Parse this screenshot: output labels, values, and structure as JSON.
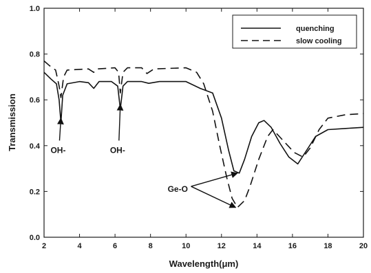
{
  "chart_data": {
    "type": "line",
    "xlabel": "Wavelength(μm)",
    "ylabel": "Transmission",
    "xlim": [
      2,
      20
    ],
    "ylim": [
      0.0,
      1.0
    ],
    "xticks": [
      2,
      4,
      6,
      8,
      10,
      12,
      14,
      16,
      18,
      20
    ],
    "yticks": [
      0.0,
      0.2,
      0.4,
      0.6,
      0.8,
      1.0
    ],
    "xtick_labels": [
      "2",
      "4",
      "6",
      "8",
      "10",
      "12",
      "14",
      "16",
      "18",
      "20"
    ],
    "ytick_labels": [
      "0.0",
      "0.2",
      "0.4",
      "0.6",
      "0.8",
      "1.0"
    ],
    "grid": false,
    "legend_position": "top-right",
    "series": [
      {
        "name": "quenching",
        "style": "solid",
        "color": "#111111",
        "points": [
          [
            2.0,
            0.72
          ],
          [
            2.4,
            0.69
          ],
          [
            2.7,
            0.67
          ],
          [
            2.85,
            0.6
          ],
          [
            2.95,
            0.5
          ],
          [
            3.05,
            0.62
          ],
          [
            3.3,
            0.67
          ],
          [
            4.0,
            0.68
          ],
          [
            4.5,
            0.675
          ],
          [
            4.8,
            0.65
          ],
          [
            5.1,
            0.68
          ],
          [
            5.8,
            0.68
          ],
          [
            6.15,
            0.66
          ],
          [
            6.3,
            0.56
          ],
          [
            6.45,
            0.66
          ],
          [
            6.7,
            0.68
          ],
          [
            7.5,
            0.68
          ],
          [
            7.9,
            0.672
          ],
          [
            8.5,
            0.68
          ],
          [
            10.0,
            0.68
          ],
          [
            10.8,
            0.65
          ],
          [
            11.5,
            0.63
          ],
          [
            12.0,
            0.52
          ],
          [
            12.4,
            0.38
          ],
          [
            12.7,
            0.29
          ],
          [
            13.0,
            0.28
          ],
          [
            13.3,
            0.34
          ],
          [
            13.7,
            0.44
          ],
          [
            14.1,
            0.5
          ],
          [
            14.4,
            0.51
          ],
          [
            14.8,
            0.48
          ],
          [
            15.3,
            0.41
          ],
          [
            15.8,
            0.35
          ],
          [
            16.3,
            0.32
          ],
          [
            16.8,
            0.38
          ],
          [
            17.3,
            0.44
          ],
          [
            18.0,
            0.47
          ],
          [
            19.0,
            0.475
          ],
          [
            20.0,
            0.48
          ]
        ]
      },
      {
        "name": "slow cooling",
        "style": "dashed",
        "color": "#111111",
        "points": [
          [
            2.0,
            0.77
          ],
          [
            2.3,
            0.75
          ],
          [
            2.65,
            0.73
          ],
          [
            2.85,
            0.66
          ],
          [
            2.95,
            0.61
          ],
          [
            3.1,
            0.7
          ],
          [
            3.3,
            0.73
          ],
          [
            4.5,
            0.735
          ],
          [
            4.8,
            0.72
          ],
          [
            5.0,
            0.735
          ],
          [
            6.0,
            0.74
          ],
          [
            6.2,
            0.72
          ],
          [
            6.3,
            0.63
          ],
          [
            6.45,
            0.72
          ],
          [
            6.7,
            0.74
          ],
          [
            7.5,
            0.74
          ],
          [
            7.8,
            0.715
          ],
          [
            8.2,
            0.735
          ],
          [
            10.0,
            0.74
          ],
          [
            10.6,
            0.72
          ],
          [
            11.0,
            0.67
          ],
          [
            11.5,
            0.55
          ],
          [
            11.9,
            0.4
          ],
          [
            12.3,
            0.26
          ],
          [
            12.6,
            0.17
          ],
          [
            12.9,
            0.13
          ],
          [
            13.3,
            0.16
          ],
          [
            13.6,
            0.22
          ],
          [
            14.1,
            0.34
          ],
          [
            14.6,
            0.44
          ],
          [
            14.9,
            0.47
          ],
          [
            15.5,
            0.42
          ],
          [
            16.1,
            0.37
          ],
          [
            16.6,
            0.35
          ],
          [
            17.0,
            0.39
          ],
          [
            17.5,
            0.47
          ],
          [
            18.0,
            0.52
          ],
          [
            19.0,
            0.535
          ],
          [
            20.0,
            0.54
          ]
        ]
      }
    ],
    "annotations": [
      {
        "text": "OH-",
        "arrow_to": [
          2.95,
          0.52
        ],
        "text_at": [
          2.6,
          0.38
        ]
      },
      {
        "text": "OH-",
        "arrow_to": [
          6.3,
          0.58
        ],
        "text_at": [
          5.95,
          0.38
        ]
      },
      {
        "text": "Ge-O",
        "arrow_to": [
          [
            12.9,
            0.28
          ],
          [
            12.8,
            0.13
          ]
        ],
        "text_at": [
          9.2,
          0.21
        ]
      }
    ]
  }
}
